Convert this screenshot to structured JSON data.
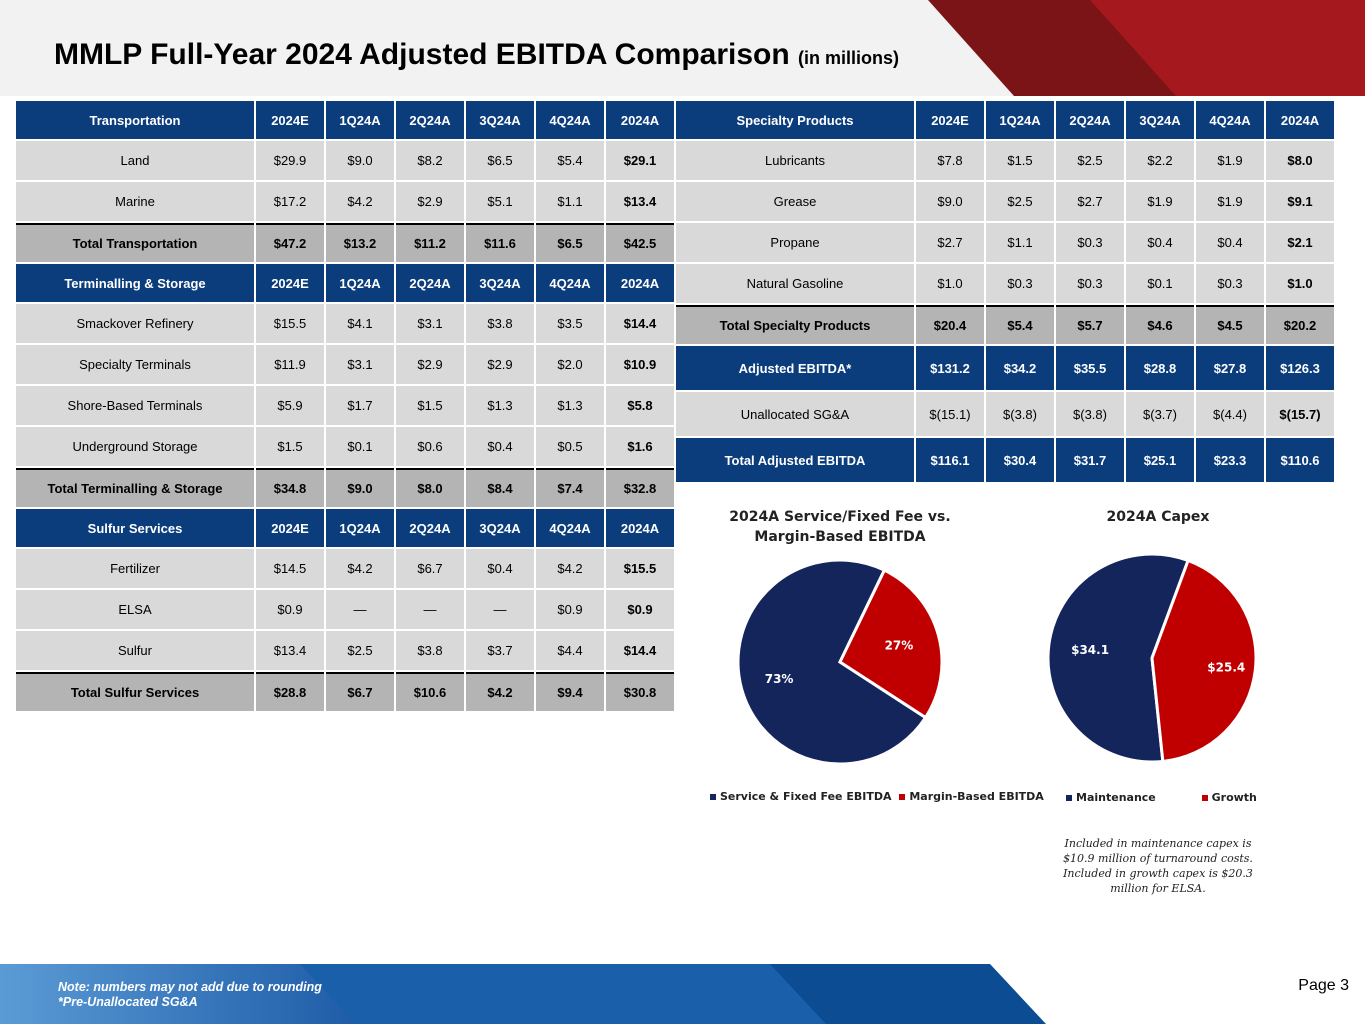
{
  "header": {
    "title": "MMLP Full-Year 2024 Adjusted EBITDA Comparison",
    "subtitle": "(in millions)"
  },
  "columns": [
    "2024E",
    "1Q24A",
    "2Q24A",
    "3Q24A",
    "4Q24A",
    "2024A"
  ],
  "left_table": {
    "transportation": {
      "header": "Transportation",
      "rows": [
        {
          "label": "Land",
          "values": [
            "$29.9",
            "$9.0",
            "$8.2",
            "$6.5",
            "$5.4",
            "$29.1"
          ]
        },
        {
          "label": "Marine",
          "values": [
            "$17.2",
            "$4.2",
            "$2.9",
            "$5.1",
            "$1.1",
            "$13.4"
          ]
        }
      ],
      "total": {
        "label": "Total Transportation",
        "values": [
          "$47.2",
          "$13.2",
          "$11.2",
          "$11.6",
          "$6.5",
          "$42.5"
        ]
      }
    },
    "terminalling": {
      "header": "Terminalling & Storage",
      "rows": [
        {
          "label": "Smackover Refinery",
          "values": [
            "$15.5",
            "$4.1",
            "$3.1",
            "$3.8",
            "$3.5",
            "$14.4"
          ]
        },
        {
          "label": "Specialty Terminals",
          "values": [
            "$11.9",
            "$3.1",
            "$2.9",
            "$2.9",
            "$2.0",
            "$10.9"
          ]
        },
        {
          "label": "Shore-Based Terminals",
          "values": [
            "$5.9",
            "$1.7",
            "$1.5",
            "$1.3",
            "$1.3",
            "$5.8"
          ]
        },
        {
          "label": "Underground Storage",
          "values": [
            "$1.5",
            "$0.1",
            "$0.6",
            "$0.4",
            "$0.5",
            "$1.6"
          ]
        }
      ],
      "total": {
        "label": "Total Terminalling & Storage",
        "values": [
          "$34.8",
          "$9.0",
          "$8.0",
          "$8.4",
          "$7.4",
          "$32.8"
        ]
      }
    },
    "sulfur": {
      "header": "Sulfur Services",
      "rows": [
        {
          "label": "Fertilizer",
          "values": [
            "$14.5",
            "$4.2",
            "$6.7",
            "$0.4",
            "$4.2",
            "$15.5"
          ]
        },
        {
          "label": "ELSA",
          "values": [
            "$0.9",
            "—",
            "—",
            "—",
            "$0.9",
            "$0.9"
          ]
        },
        {
          "label": "Sulfur",
          "values": [
            "$13.4",
            "$2.5",
            "$3.8",
            "$3.7",
            "$4.4",
            "$14.4"
          ]
        }
      ],
      "total": {
        "label": "Total Sulfur Services",
        "values": [
          "$28.8",
          "$6.7",
          "$10.6",
          "$4.2",
          "$9.4",
          "$30.8"
        ]
      }
    }
  },
  "right_table": {
    "specialty": {
      "header": "Specialty Products",
      "rows": [
        {
          "label": "Lubricants",
          "values": [
            "$7.8",
            "$1.5",
            "$2.5",
            "$2.2",
            "$1.9",
            "$8.0"
          ]
        },
        {
          "label": "Grease",
          "values": [
            "$9.0",
            "$2.5",
            "$2.7",
            "$1.9",
            "$1.9",
            "$9.1"
          ]
        },
        {
          "label": "Propane",
          "values": [
            "$2.7",
            "$1.1",
            "$0.3",
            "$0.4",
            "$0.4",
            "$2.1"
          ]
        },
        {
          "label": "Natural Gasoline",
          "values": [
            "$1.0",
            "$0.3",
            "$0.3",
            "$0.1",
            "$0.3",
            "$1.0"
          ]
        }
      ],
      "total": {
        "label": "Total Specialty Products",
        "values": [
          "$20.4",
          "$5.4",
          "$5.7",
          "$4.6",
          "$4.5",
          "$20.2"
        ]
      }
    },
    "adjusted_ebitda": {
      "label": "Adjusted EBITDA*",
      "values": [
        "$131.2",
        "$34.2",
        "$35.5",
        "$28.8",
        "$27.8",
        "$126.3"
      ]
    },
    "unallocated": {
      "label": "Unallocated SG&A",
      "values": [
        "$(15.1)",
        "$(3.8)",
        "$(3.8)",
        "$(3.7)",
        "$(4.4)",
        "$(15.7)"
      ]
    },
    "total_adjusted": {
      "label": "Total Adjusted EBITDA",
      "values": [
        "$116.1",
        "$30.4",
        "$31.7",
        "$25.1",
        "$23.3",
        "$110.6"
      ]
    }
  },
  "chart_data": [
    {
      "type": "pie",
      "title_line1": "2024A Service/Fixed Fee vs.",
      "title_line2": "Margin-Based EBITDA",
      "categories": [
        "Service & Fixed Fee EBITDA",
        "Margin-Based EBITDA"
      ],
      "values": [
        73,
        27
      ],
      "labels": [
        "73%",
        "27%"
      ],
      "colors": [
        "#14255c",
        "#c00000"
      ],
      "legend": "bottom"
    },
    {
      "type": "pie",
      "title": "2024A Capex",
      "categories": [
        "Maintenance",
        "Growth"
      ],
      "values": [
        34.1,
        25.4
      ],
      "labels": [
        "$34.1",
        "$25.4"
      ],
      "colors": [
        "#14255c",
        "#c00000"
      ],
      "legend": "bottom"
    }
  ],
  "capex_note": "Included in maintenance capex is $10.9 million of turnaround costs. Included in growth capex is $20.3 million for ELSA.",
  "footer": {
    "note1": "Note: numbers may not add due to rounding",
    "note2": "*Pre-Unallocated SG&A",
    "page": "Page 3"
  }
}
